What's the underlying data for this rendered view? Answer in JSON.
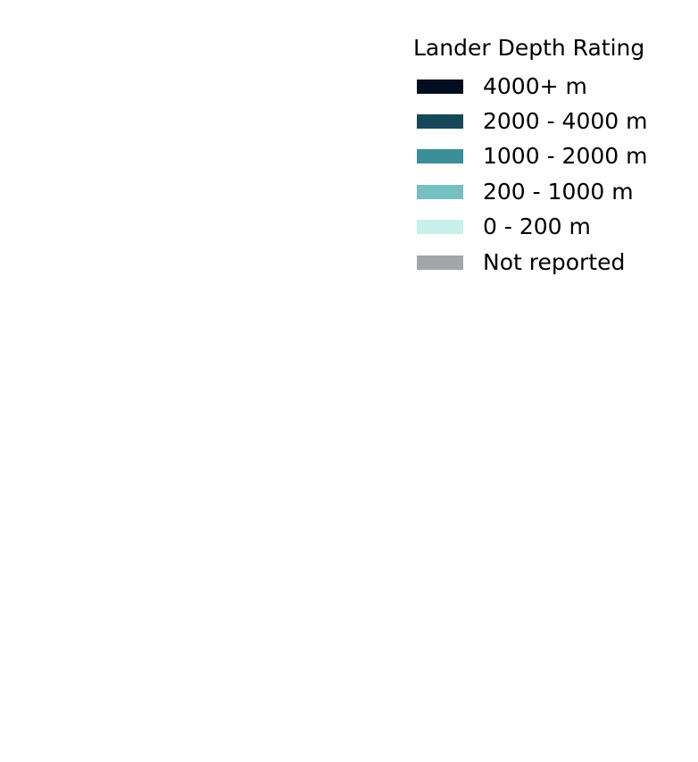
{
  "legend": {
    "title": "Lander Depth Rating",
    "items": [
      {
        "label": "4000+ m",
        "color": "#020e20"
      },
      {
        "label": "2000 - 4000 m",
        "color": "#17485a"
      },
      {
        "label": "1000 - 2000 m",
        "color": "#3a8f98"
      },
      {
        "label": "200 - 1000 m",
        "color": "#74c0c2"
      },
      {
        "label": "0 - 200 m",
        "color": "#c8f0ea"
      },
      {
        "label": "Not reported",
        "color": "#a3a6a9"
      }
    ]
  }
}
